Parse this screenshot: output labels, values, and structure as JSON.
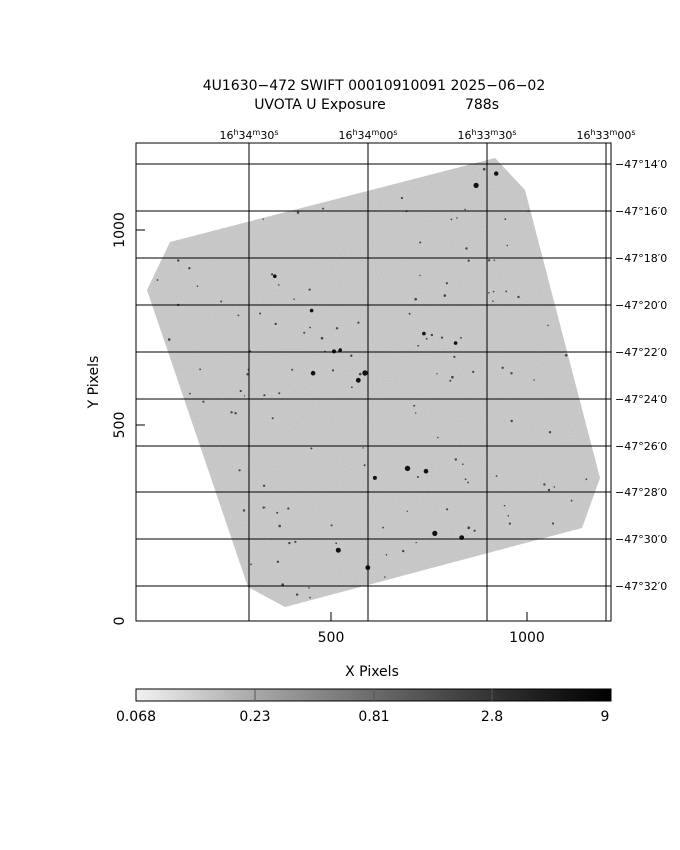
{
  "title": {
    "line1": "4U1630−472 SWIFT 00010910091 2025−06−02",
    "line2_left": "UVOTA U Exposure",
    "line2_right": "788s"
  },
  "x_axis": {
    "label": "X Pixels",
    "ticks": [
      "500",
      "1000"
    ]
  },
  "y_axis": {
    "label": "Y Pixels",
    "ticks": [
      "0",
      "500",
      "1000"
    ]
  },
  "ra_ticks": [
    {
      "h": "16",
      "m": "34",
      "s": "30"
    },
    {
      "h": "16",
      "m": "34",
      "s": "00"
    },
    {
      "h": "16",
      "m": "33",
      "s": "30"
    },
    {
      "h": "16",
      "m": "33",
      "s": "00"
    }
  ],
  "dec_ticks": [
    "−47°14′0",
    "−47°16′0",
    "−47°18′0",
    "−47°20′0",
    "−47°22′0",
    "−47°24′0",
    "−47°26′0",
    "−47°28′0",
    "−47°30′0",
    "−47°32′0"
  ],
  "colorbar": {
    "labels": [
      "0.068",
      "0.23",
      "0.81",
      "2.8",
      "9"
    ]
  },
  "colors": {
    "image_gray": "#bdbdbd",
    "background": "#ffffff",
    "ink": "#000000"
  }
}
